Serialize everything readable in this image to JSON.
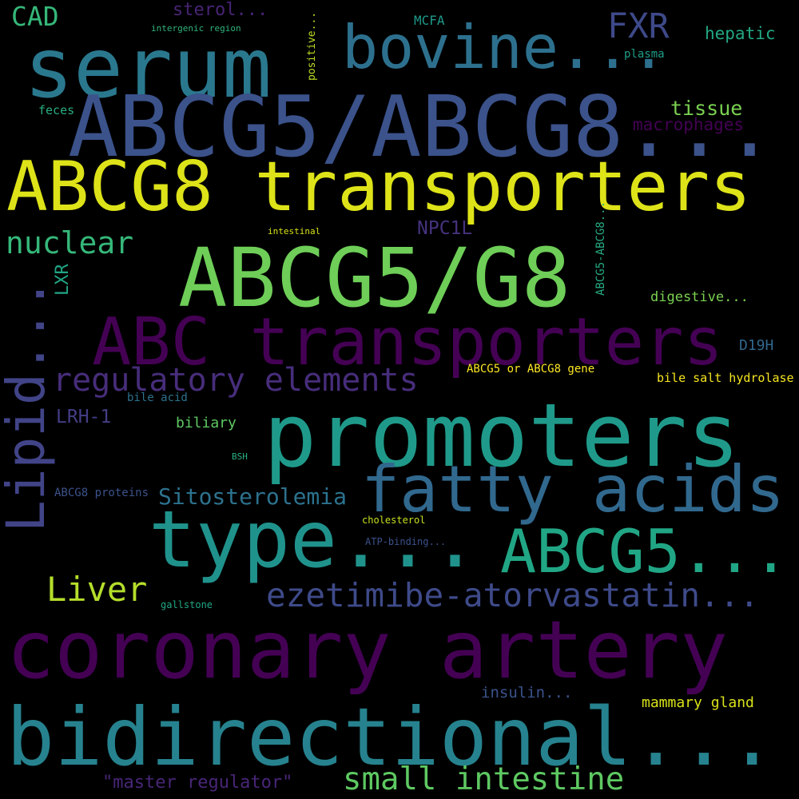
{
  "words": [
    {
      "text": "CAD",
      "color": "#35b779"
    },
    {
      "text": "sterol...",
      "color": "#482475"
    },
    {
      "text": "intergenic region",
      "color": "#2fb47c"
    },
    {
      "text": "positive...",
      "color": "#bddf26"
    },
    {
      "text": "MCFA",
      "color": "#1f9a8a"
    },
    {
      "text": "FXR",
      "color": "#3e4989"
    },
    {
      "text": "hepatic",
      "color": "#22a884"
    },
    {
      "text": "plasma",
      "color": "#1f9e89"
    },
    {
      "text": "serum",
      "color": "#2a788e"
    },
    {
      "text": "bovine...",
      "color": "#2d708e"
    },
    {
      "text": "ABCG5/ABCG8...",
      "color": "#3b528b"
    },
    {
      "text": "feces",
      "color": "#29af7f"
    },
    {
      "text": "tissue",
      "color": "#7ad151"
    },
    {
      "text": "macrophages",
      "color": "#440154"
    },
    {
      "text": "ABCG8 transporters",
      "color": "#dde318"
    },
    {
      "text": "nuclear",
      "color": "#35b779"
    },
    {
      "text": "intestinal",
      "color": "#d8e219"
    },
    {
      "text": "NPC1L",
      "color": "#46327e"
    },
    {
      "text": "ABCG5-ABCG8...",
      "color": "#25ac82"
    },
    {
      "text": "LXR",
      "color": "#21a685"
    },
    {
      "text": "ABCG5/G8",
      "color": "#6ece58"
    },
    {
      "text": "Lipid...",
      "color": "#414487"
    },
    {
      "text": "digestive...",
      "color": "#7ad151"
    },
    {
      "text": "ABC transporters",
      "color": "#440154"
    },
    {
      "text": "D19H",
      "color": "#31688e"
    },
    {
      "text": "regulatory elements",
      "color": "#472d7b"
    },
    {
      "text": "ABCG5 or ABCG8 gene",
      "color": "#fde725"
    },
    {
      "text": "bile salt hydrolase",
      "color": "#f6e620"
    },
    {
      "text": "bile acid",
      "color": "#2c728e"
    },
    {
      "text": "LRH-1",
      "color": "#433e85"
    },
    {
      "text": "promoters",
      "color": "#1f9a8a"
    },
    {
      "text": "biliary",
      "color": "#5ec962"
    },
    {
      "text": "BSH",
      "color": "#29af7f"
    },
    {
      "text": "fatty acids",
      "color": "#31688e"
    },
    {
      "text": "ABCG8 proteins",
      "color": "#3b528b"
    },
    {
      "text": "Sitosterolemia",
      "color": "#2c728e"
    },
    {
      "text": "type...",
      "color": "#20928c"
    },
    {
      "text": "cholesterol",
      "color": "#c8e020"
    },
    {
      "text": "ABCG5...",
      "color": "#21a685"
    },
    {
      "text": "ATP-binding...",
      "color": "#3b528b"
    },
    {
      "text": "Liver",
      "color": "#b5de2b"
    },
    {
      "text": "ezetimibe-atorvastatin...",
      "color": "#3e4a89"
    },
    {
      "text": "gallstone",
      "color": "#22a884"
    },
    {
      "text": "coronary artery",
      "color": "#440154"
    },
    {
      "text": "insulin...",
      "color": "#3b528b"
    },
    {
      "text": "mammary gland",
      "color": "#d8e219"
    },
    {
      "text": "bidirectional...",
      "color": "#26828e"
    },
    {
      "text": "\"master regulator\"",
      "color": "#482677"
    },
    {
      "text": "small intestine",
      "color": "#5ec962"
    }
  ]
}
